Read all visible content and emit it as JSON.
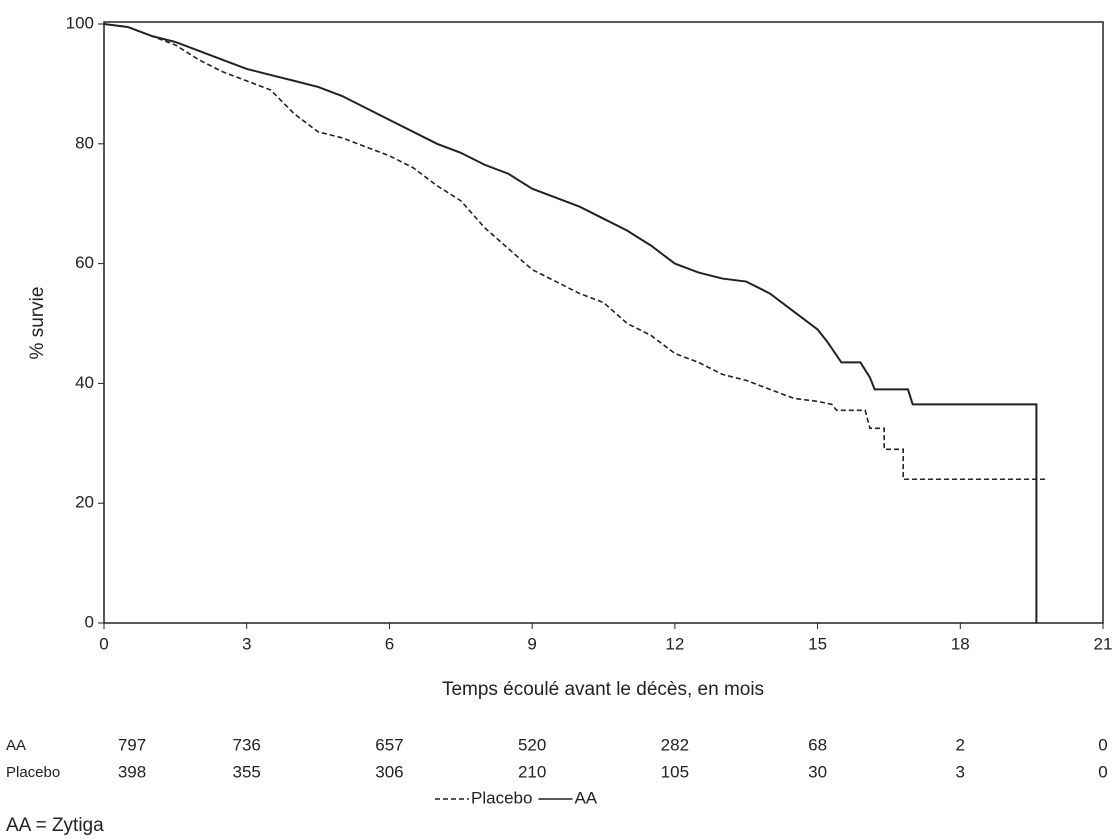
{
  "chart_data": {
    "type": "line",
    "step": true,
    "ylabel": "% survie",
    "xlabel": "Temps écoulé avant le décès, en mois",
    "xlim": [
      0,
      21
    ],
    "xticks": [
      0,
      3,
      6,
      9,
      12,
      15,
      18,
      21
    ],
    "ylim": [
      0,
      100
    ],
    "yticks": [
      0,
      20,
      40,
      60,
      80,
      100
    ],
    "series": [
      {
        "name": "Placebo",
        "color": "#222222",
        "dash": true,
        "x": [
          0,
          0.5,
          1,
          1.5,
          2,
          2.5,
          3,
          3.5,
          4,
          4.5,
          5,
          5.5,
          6,
          6.5,
          7,
          7.5,
          8,
          8.5,
          9,
          9.5,
          10,
          10.5,
          11,
          11.5,
          12,
          12.5,
          13,
          13.5,
          14,
          14.5,
          15,
          15.3,
          15.4,
          16.0,
          16.1,
          16.4,
          16.4,
          16.8,
          16.8,
          19.8
        ],
        "values": [
          100,
          99.5,
          98,
          96.5,
          94,
          92,
          90.5,
          89,
          85,
          82,
          81,
          79.5,
          78,
          76,
          73,
          70.5,
          66,
          62.5,
          59,
          57,
          55,
          53.5,
          50,
          48,
          45,
          43.5,
          41.5,
          40.5,
          39,
          37.5,
          37,
          36.5,
          35.5,
          35.5,
          32.5,
          32.5,
          29,
          29,
          24,
          24
        ]
      },
      {
        "name": "AA",
        "color": "#222222",
        "dash": false,
        "x": [
          0,
          0.5,
          1,
          1.5,
          2,
          2.5,
          3,
          3.5,
          4,
          4.5,
          5,
          5.5,
          6,
          6.5,
          7,
          7.5,
          8,
          8.5,
          9,
          9.5,
          10,
          10.5,
          11,
          11.5,
          12,
          12.5,
          13,
          13.5,
          14,
          14.5,
          15,
          15.2,
          15.5,
          15.9,
          16.1,
          16.2,
          16.9,
          17.0,
          19.6,
          19.6
        ],
        "values": [
          100,
          99.5,
          98,
          97,
          95.5,
          94,
          92.5,
          91.5,
          90.5,
          89.5,
          88,
          86,
          84,
          82,
          80,
          78.5,
          76.5,
          75,
          72.5,
          71,
          69.5,
          67.5,
          65.5,
          63,
          60,
          58.5,
          57.5,
          57,
          55,
          52,
          49,
          47,
          43.5,
          43.5,
          41,
          39,
          39,
          36.5,
          36.5,
          0
        ]
      }
    ],
    "risk_table": [
      {
        "name": "AA",
        "values": [
          797,
          736,
          657,
          520,
          282,
          68,
          2,
          0
        ]
      },
      {
        "name": "Placebo",
        "values": [
          398,
          355,
          306,
          210,
          105,
          30,
          3,
          0
        ]
      }
    ],
    "footnote": "AA = Zytiga"
  }
}
